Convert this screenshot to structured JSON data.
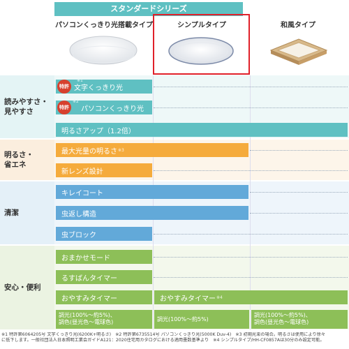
{
  "header": {
    "standard_series": "スタンダードシリーズ"
  },
  "columns": [
    {
      "label": "パソコンくっきり光搭載タイプ"
    },
    {
      "label": "シンプルタイプ"
    },
    {
      "label": "和風タイプ"
    }
  ],
  "sections": [
    {
      "label": "読みやすさ・\n見やすさ",
      "color": "#5fc0c2"
    },
    {
      "label": "明るさ・\n省エネ",
      "color": "#f5ab3c"
    },
    {
      "label": "清潔",
      "color": "#62a9d9"
    },
    {
      "label": "安心・便利",
      "color": "#8dbf58"
    }
  ],
  "badge": "特許",
  "features": {
    "moji": {
      "label": "文字くっきり光",
      "note": "※1"
    },
    "pasokon": {
      "label": "パソコンくっきり光",
      "note": "※2"
    },
    "akarusa_up": {
      "label": "明るさアップ（1.2倍）"
    },
    "max_light": {
      "label": "最大光量の明るさ",
      "note": "※3"
    },
    "lens": {
      "label": "新レンズ設計"
    },
    "kirei": {
      "label": "キレイコート"
    },
    "mushi": {
      "label": "虫返し構造"
    },
    "mushi_block": {
      "label": "虫ブロック"
    },
    "omakase": {
      "label": "おまかせモード"
    },
    "rusuban": {
      "label": "るすばんタイマー"
    },
    "oyasumi": {
      "label": "おやすみタイマー"
    },
    "oyasumi2": {
      "label": "おやすみタイマー",
      "note": "※4"
    }
  },
  "dimming": {
    "col1": [
      "調光(100%～約5%)、",
      "調色(昼光色～電球色)"
    ],
    "col2": "調光(100%～約5%)",
    "col3": [
      "調光(100%～約5%)、",
      "調色(昼光色～電球色)"
    ]
  },
  "footnotes": [
    "※1 特許第6064205号 文字くっきり光(6200K+明るさ)　※2 特許第6735514号 パソコンくっきり光(5000K Duv-4)　※3 初期光束の場合。明るさは使用により徐々",
    "に低下します。一般社団法人日本照明工業会ガイドA121：2020住宅用カタログにおける適用畳数基準より　※4 シンプルタイプ/HH-CF0857Aは30分のみ設定可能。"
  ]
}
